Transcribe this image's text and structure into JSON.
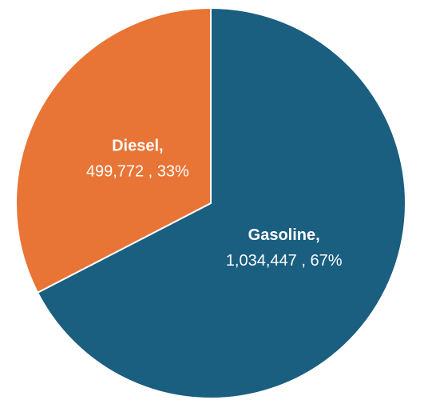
{
  "chart_data": {
    "type": "pie",
    "categories": [
      "Gasoline,",
      "Diesel,"
    ],
    "values": [
      1034447,
      499772
    ],
    "value_labels": [
      "1,034,447 , 67%",
      "499,772 , 33%"
    ],
    "colors": [
      "#1a5e80",
      "#e87435"
    ]
  }
}
